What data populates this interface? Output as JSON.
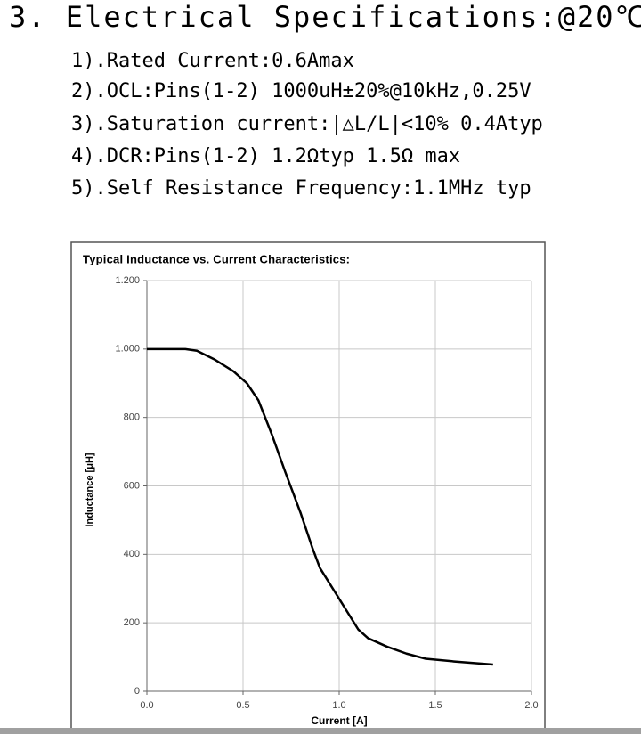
{
  "heading": "3. Electrical Specifications:@20℃",
  "specs": [
    "1).Rated Current:0.6Amax",
    "2).OCL:Pins(1-2) 1000uH±20%@10kHz,0.25V",
    "3).Saturation current:|△L/L|<10% 0.4Atyp",
    "4).DCR:Pins(1-2) 1.2Ωtyp 1.5Ω max",
    "5).Self Resistance Frequency:1.1MHz typ"
  ],
  "chart_data": {
    "type": "line",
    "title": "Typical Inductance vs. Current Characteristics:",
    "x_label": "Current [A]",
    "y_label": "Inductance [μH]",
    "x": [
      0,
      0.1,
      0.2,
      0.26,
      0.35,
      0.45,
      0.52,
      0.58,
      0.65,
      0.72,
      0.8,
      0.86,
      0.9,
      1.0,
      1.1,
      1.15,
      1.25,
      1.35,
      1.45,
      1.6,
      1.8
    ],
    "values": [
      1000,
      1000,
      1000,
      995,
      970,
      935,
      900,
      850,
      750,
      640,
      520,
      420,
      360,
      270,
      180,
      155,
      130,
      110,
      95,
      87,
      78
    ],
    "color": "#000000",
    "xlim": [
      0,
      2
    ],
    "xticks": [
      {
        "value": 0,
        "label": "0.0"
      },
      0.5,
      {
        "value": 1,
        "label": "1.0"
      },
      1.5,
      {
        "value": 2,
        "label": "2.0"
      }
    ],
    "ylim": [
      0,
      1200
    ],
    "yticks": [
      0,
      200,
      400,
      600,
      800,
      {
        "value": 1000,
        "label": "1.000"
      },
      {
        "value": 1200,
        "label": "1.200"
      }
    ],
    "grid": true
  }
}
